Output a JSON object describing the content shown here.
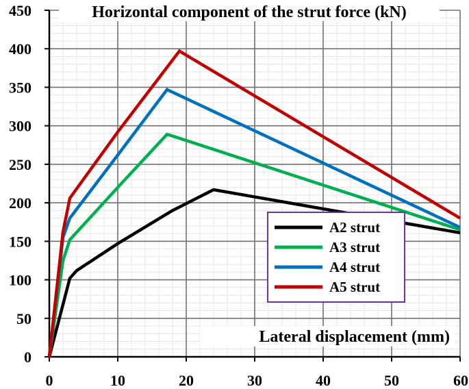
{
  "chart_data": {
    "type": "line",
    "title": "",
    "xlabel": "Lateral displacement (mm)",
    "ylabel": "Horizontal component of the strut force (kN)",
    "xlim": [
      0,
      60
    ],
    "ylim": [
      0,
      450
    ],
    "xticks": [
      "0",
      "10",
      "20",
      "30",
      "40",
      "50",
      "60"
    ],
    "yticks": [
      "0",
      "50",
      "100",
      "150",
      "200",
      "250",
      "300",
      "350",
      "400",
      "450"
    ],
    "grid": true,
    "legend_position": "lower-right",
    "legend_border_color": "#7030a0",
    "series": [
      {
        "name": "A2 strut",
        "color": "#000000",
        "x": [
          0,
          3,
          4,
          10,
          18,
          24,
          60
        ],
        "y": [
          0,
          102,
          112,
          147,
          190,
          217,
          161
        ]
      },
      {
        "name": "A3 strut",
        "color": "#00b050",
        "x": [
          0,
          2,
          3,
          10,
          17.2,
          60
        ],
        "y": [
          0,
          125,
          152,
          220,
          289,
          165
        ]
      },
      {
        "name": "A4 strut",
        "color": "#0070c0",
        "x": [
          0,
          2,
          3,
          10,
          17.2,
          60
        ],
        "y": [
          0,
          155,
          180,
          262,
          347,
          168
        ]
      },
      {
        "name": "A5 strut",
        "color": "#c00000",
        "x": [
          0,
          2,
          3,
          10,
          19,
          60
        ],
        "y": [
          0,
          162,
          206,
          292,
          397,
          180
        ]
      }
    ]
  }
}
